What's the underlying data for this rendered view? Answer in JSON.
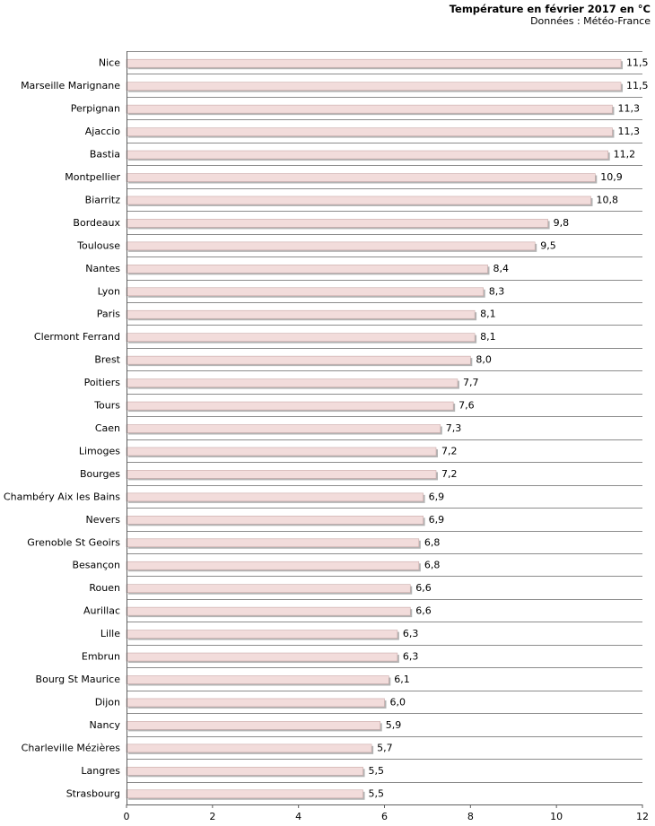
{
  "chart_data": {
    "type": "bar",
    "orientation": "horizontal",
    "title": "Température en février 2017 en °C",
    "subtitle": "Données : Météo-France",
    "categories": [
      "Nice",
      "Marseille Marignane",
      "Perpignan",
      "Ajaccio",
      "Bastia",
      "Montpellier",
      "Biarritz",
      "Bordeaux",
      "Toulouse",
      "Nantes",
      "Lyon",
      "Paris",
      "Clermont Ferrand",
      "Brest",
      "Poitiers",
      "Tours",
      "Caen",
      "Limoges",
      "Bourges",
      "Chambéry Aix les Bains",
      "Nevers",
      "Grenoble St Geoirs",
      "Besançon",
      "Rouen",
      "Aurillac",
      "Lille",
      "Embrun",
      "Bourg St Maurice",
      "Dijon",
      "Nancy",
      "Charleville Mézières",
      "Langres",
      "Strasbourg"
    ],
    "values": [
      11.5,
      11.5,
      11.3,
      11.3,
      11.2,
      10.9,
      10.8,
      9.8,
      9.5,
      8.4,
      8.3,
      8.1,
      8.1,
      8.0,
      7.7,
      7.6,
      7.3,
      7.2,
      7.2,
      6.9,
      6.9,
      6.8,
      6.8,
      6.6,
      6.6,
      6.3,
      6.3,
      6.1,
      6.0,
      5.9,
      5.7,
      5.5,
      5.5
    ],
    "value_labels": [
      "11,5",
      "11,5",
      "11,3",
      "11,3",
      "11,2",
      "10,9",
      "10,8",
      "9,8",
      "9,5",
      "8,4",
      "8,3",
      "8,1",
      "8,1",
      "8,0",
      "7,7",
      "7,6",
      "7,3",
      "7,2",
      "7,2",
      "6,9",
      "6,9",
      "6,8",
      "6,8",
      "6,6",
      "6,6",
      "6,3",
      "6,3",
      "6,1",
      "6,0",
      "5,9",
      "5,7",
      "5,5",
      "5,5"
    ],
    "xlim": [
      0,
      12
    ],
    "x_ticks": [
      0,
      2,
      4,
      6,
      8,
      10,
      12
    ],
    "x_tick_labels": [
      "0",
      "2",
      "4",
      "6",
      "8",
      "10",
      "12"
    ],
    "grid": "horizontal",
    "xlabel": "",
    "ylabel": "",
    "colors": {
      "bar_fill": "#f2dcdb",
      "bar_edge": "#c9a9a8",
      "bar_shadow": "#b3b3b3",
      "grid": "#8c8c8c",
      "axis": "#5f5f5f"
    }
  }
}
